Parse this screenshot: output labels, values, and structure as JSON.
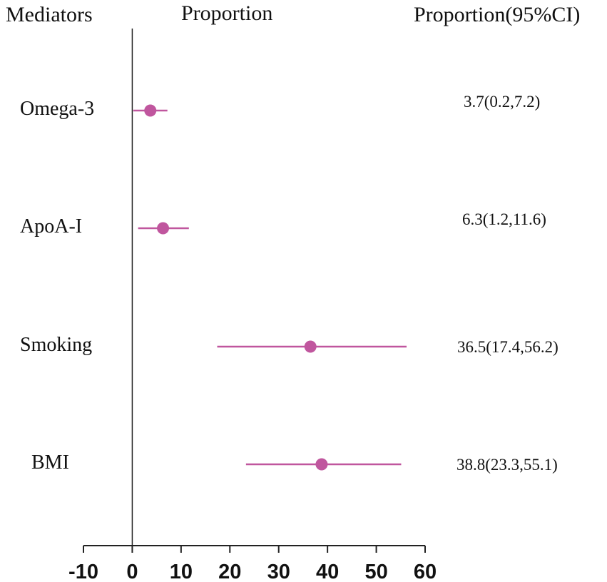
{
  "headers": {
    "mediators": "Mediators",
    "proportion": "Proportion",
    "proportion_ci": "Proportion(95%CI)"
  },
  "chart_data": {
    "type": "forest",
    "title": "",
    "xlabel": "Proportion",
    "ylabel": "Mediators",
    "xlim": [
      -10,
      60
    ],
    "xticks": [
      -10,
      0,
      10,
      20,
      30,
      40,
      50,
      60
    ],
    "reference_line": 0,
    "marker_color": "#c0569e",
    "rows": [
      {
        "label": "Omega-3",
        "estimate": 3.7,
        "lower": 0.2,
        "upper": 7.2,
        "text": "3.7(0.2,7.2)"
      },
      {
        "label": "ApoA-I",
        "estimate": 6.3,
        "lower": 1.2,
        "upper": 11.6,
        "text": "6.3(1.2,11.6)"
      },
      {
        "label": "Smoking",
        "estimate": 36.5,
        "lower": 17.4,
        "upper": 56.2,
        "text": "36.5(17.4,56.2)"
      },
      {
        "label": "BMI",
        "estimate": 38.8,
        "lower": 23.3,
        "upper": 55.1,
        "text": "38.8(23.3,55.1)"
      }
    ]
  }
}
